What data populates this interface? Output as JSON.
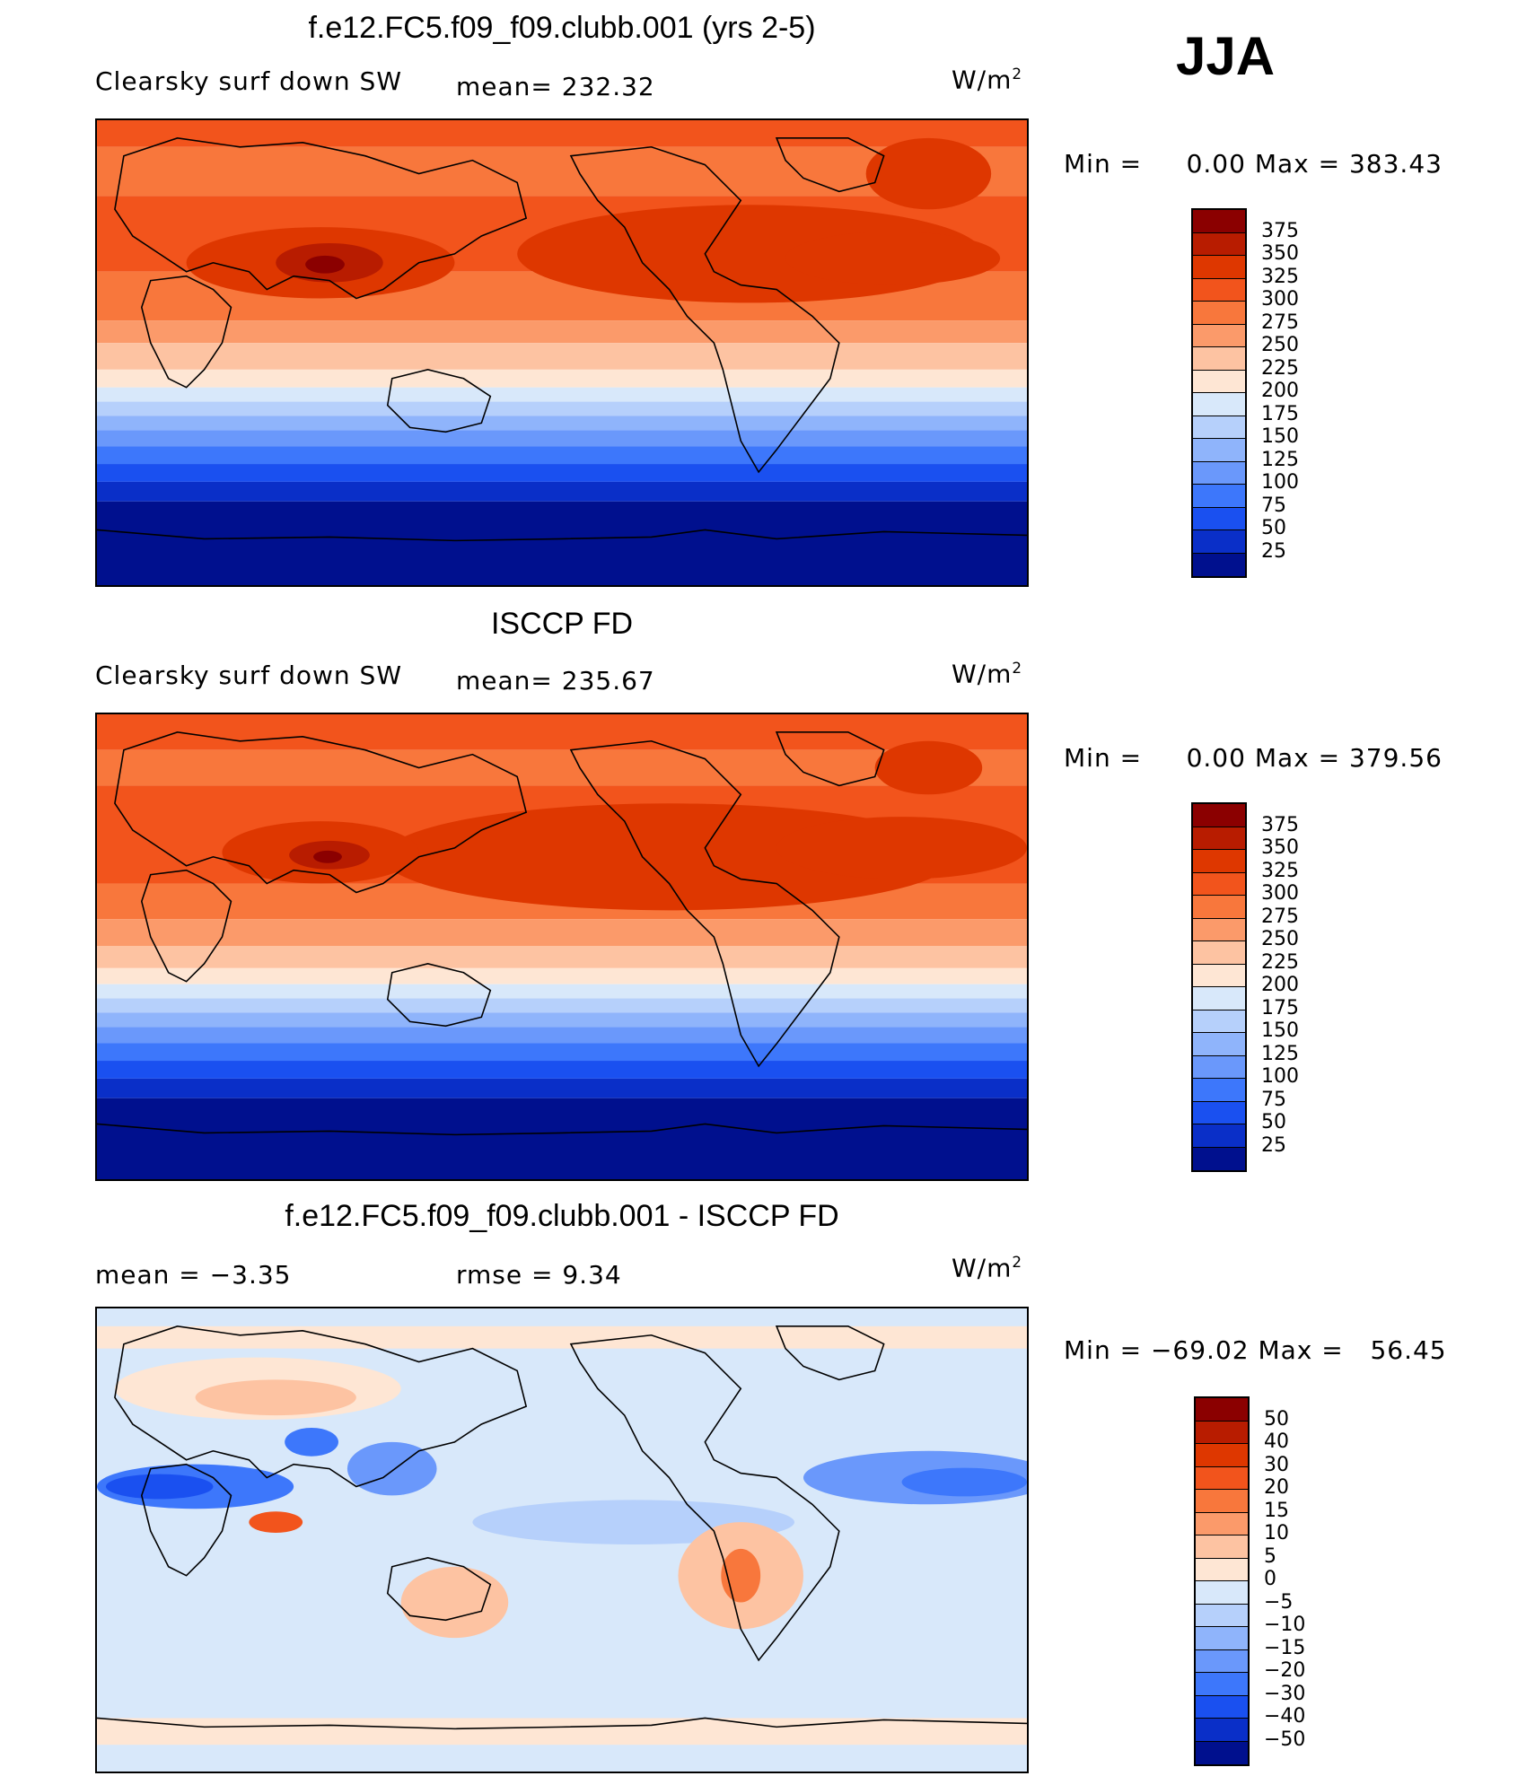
{
  "season": "JJA",
  "panels": [
    {
      "title": "f.e12.FC5.f09_f09.clubb.001 (yrs 2-5)",
      "left_label": "Clearsky surf down SW",
      "center_label": "mean= 232.32",
      "units": "W/m",
      "units_sup": "2",
      "min_label": "Min =",
      "min_value": "0.00",
      "max_label": "Max =",
      "max_value": "383.43",
      "colorbar": {
        "ticks": [
          "375",
          "350",
          "325",
          "300",
          "275",
          "250",
          "225",
          "200",
          "175",
          "150",
          "125",
          "100",
          "75",
          "50",
          "25"
        ],
        "colors": [
          "#8b0000",
          "#b81c00",
          "#de3700",
          "#f2541c",
          "#f8773c",
          "#fb9a6a",
          "#fdc3a2",
          "#fee6d4",
          "#d8e8fa",
          "#b6d0fb",
          "#8fb4fb",
          "#6a98fb",
          "#3d77fb",
          "#1a50f0",
          "#0a2fc8",
          "#00108e"
        ]
      }
    },
    {
      "title": "ISCCP FD",
      "left_label": "Clearsky surf down SW",
      "center_label": "mean= 235.67",
      "units": "W/m",
      "units_sup": "2",
      "min_label": "Min =",
      "min_value": "0.00",
      "max_label": "Max =",
      "max_value": "379.56",
      "colorbar": {
        "ticks": [
          "375",
          "350",
          "325",
          "300",
          "275",
          "250",
          "225",
          "200",
          "175",
          "150",
          "125",
          "100",
          "75",
          "50",
          "25"
        ],
        "colors": [
          "#8b0000",
          "#b81c00",
          "#de3700",
          "#f2541c",
          "#f8773c",
          "#fb9a6a",
          "#fdc3a2",
          "#fee6d4",
          "#d8e8fa",
          "#b6d0fb",
          "#8fb4fb",
          "#6a98fb",
          "#3d77fb",
          "#1a50f0",
          "#0a2fc8",
          "#00108e"
        ]
      }
    },
    {
      "title": "f.e12.FC5.f09_f09.clubb.001 - ISCCP FD",
      "left_label": "mean =  −3.35",
      "center_label": "rmse =    9.34",
      "units": "W/m",
      "units_sup": "2",
      "min_label": "Min =",
      "min_value": "−69.02",
      "max_label": "Max =",
      "max_value": "56.45",
      "colorbar": {
        "ticks": [
          "50",
          "40",
          "30",
          "20",
          "15",
          "10",
          "5",
          "0",
          "−5",
          "−10",
          "−15",
          "−20",
          "−30",
          "−40",
          "−50"
        ],
        "colors": [
          "#8b0000",
          "#b81c00",
          "#de3700",
          "#f2541c",
          "#f8773c",
          "#fb9a6a",
          "#fdc3a2",
          "#fee6d4",
          "#d8e8fa",
          "#b6d0fb",
          "#8fb4fb",
          "#6a98fb",
          "#3d77fb",
          "#1a50f0",
          "#0a2fc8",
          "#00108e"
        ]
      }
    }
  ]
}
